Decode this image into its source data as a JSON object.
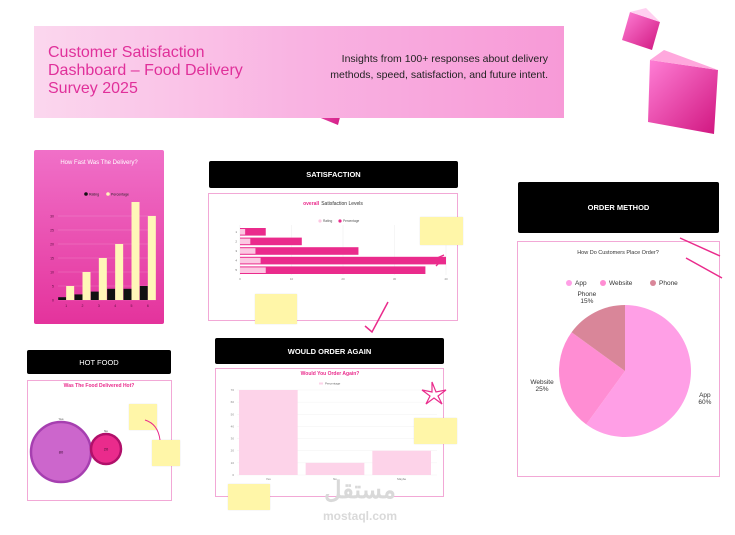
{
  "banner": {
    "title": "Customer Satisfaction Dashboard – Food Delivery Survey 2025",
    "subtitle": "Insights from 100+ responses about delivery methods, speed, satisfaction, and future intent."
  },
  "sections": {
    "satisfaction": "SATISFACTION",
    "order_method": "ORDER METHOD",
    "hot_food": "HOT FOOD",
    "order_again": "WOULD ORDER AGAIN"
  },
  "watermark": {
    "arabic": "مستقل",
    "latin": "mostaql.com"
  },
  "colors": {
    "pink": "#ea2b8c",
    "light_pink": "#fcc8e2",
    "cream": "#fff7b8",
    "pie_app": "#ff9fe6",
    "pie_website": "#ff8dd3",
    "pie_phone": "#d98699"
  },
  "chart_data": [
    {
      "type": "bar",
      "title": "How Fast Was The Delivery?",
      "legend": [
        "Rating",
        "Percentage"
      ],
      "legend_position": "top-right",
      "categories": [
        "1",
        "2",
        "3",
        "4",
        "5",
        "6"
      ],
      "series": [
        {
          "name": "Rating",
          "values": [
            1,
            2,
            3,
            4,
            4,
            5
          ]
        },
        {
          "name": "Percentage",
          "values": [
            5,
            10,
            15,
            20,
            35,
            30
          ]
        }
      ],
      "yticks": [
        "0",
        "5",
        "10",
        "15",
        "20",
        "25",
        "30"
      ],
      "ylim": [
        0,
        35
      ]
    },
    {
      "type": "bar",
      "orientation": "horizontal",
      "title_prefix": "overall",
      "title": "Satisfaction Levels",
      "legend": [
        "Rating",
        "Percentage"
      ],
      "legend_position": "top-right",
      "categories": [
        "1",
        "2",
        "3",
        "4",
        "5"
      ],
      "series": [
        {
          "name": "Rating",
          "values": [
            1,
            2,
            3,
            4,
            5
          ]
        },
        {
          "name": "Percentage",
          "values": [
            5,
            12,
            23,
            40,
            36
          ]
        }
      ],
      "xticks": [
        "0",
        "10",
        "20",
        "30",
        "40"
      ],
      "xlim": [
        0,
        40
      ]
    },
    {
      "type": "pie",
      "title": "How Do Customers Place Order?",
      "legend_position": "top",
      "labels": [
        "App",
        "Website",
        "Phone"
      ],
      "values": [
        60,
        25,
        15
      ],
      "value_labels": [
        "60%",
        "25%",
        "15%"
      ]
    },
    {
      "type": "scatter",
      "title": "Was The Food Delivered Hot?",
      "labels": [
        "Yes",
        "No"
      ],
      "values": [
        80,
        20
      ],
      "value_labels": [
        "80",
        "20"
      ]
    },
    {
      "type": "bar",
      "title": "Would You Order Again?",
      "legend": [
        "Percentage"
      ],
      "legend_position": "top",
      "categories": [
        "Yes",
        "No",
        "Maybe"
      ],
      "values": [
        70,
        10,
        20
      ],
      "yticks": [
        "0",
        "10",
        "20",
        "30",
        "40",
        "50",
        "60",
        "70"
      ],
      "ylim": [
        0,
        70
      ]
    }
  ]
}
